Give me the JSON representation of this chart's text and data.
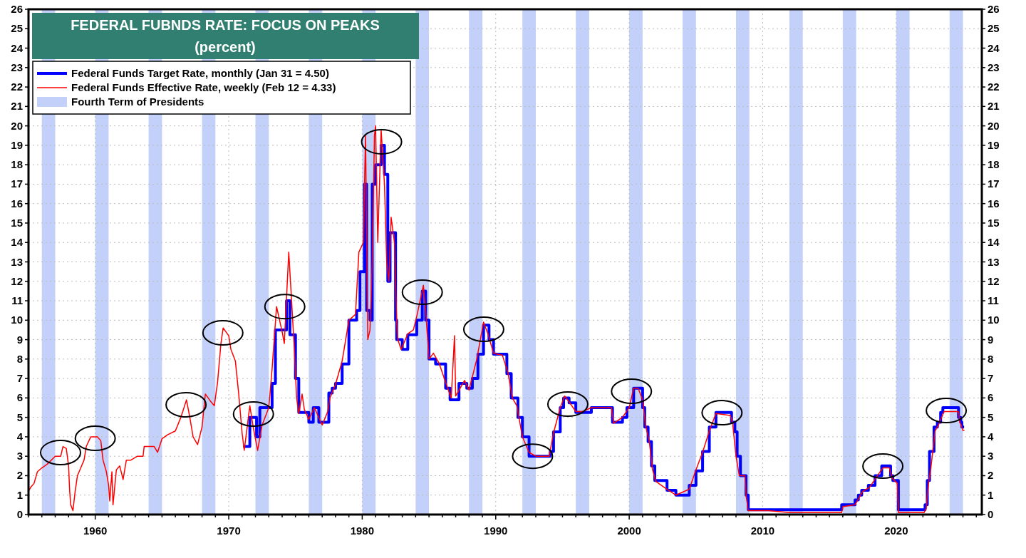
{
  "chart_data": {
    "type": "line",
    "title": "FEDERAL FUBNDS RATE: FOCUS ON PEAKS",
    "subtitle": "(percent)",
    "xlim": [
      "1955-01",
      "2026-06"
    ],
    "xticks": [
      {
        "value": "1955",
        "label": null
      },
      {
        "value": "1956",
        "label": null
      },
      {
        "value": "1957",
        "label": null
      },
      {
        "value": "1958",
        "label": null
      },
      {
        "value": "1959",
        "label": null
      },
      {
        "value": "1960",
        "label": "1960"
      },
      {
        "value": "1961",
        "label": null
      },
      {
        "value": "1962",
        "label": null
      },
      {
        "value": "1963",
        "label": null
      },
      {
        "value": "1964",
        "label": null
      },
      {
        "value": "1965",
        "label": null
      },
      {
        "value": "1966",
        "label": null
      },
      {
        "value": "1967",
        "label": null
      },
      {
        "value": "1968",
        "label": null
      },
      {
        "value": "1969",
        "label": null
      },
      {
        "value": "1970",
        "label": "1970"
      },
      {
        "value": "1971",
        "label": null
      },
      {
        "value": "1972",
        "label": null
      },
      {
        "value": "1973",
        "label": null
      },
      {
        "value": "1974",
        "label": null
      },
      {
        "value": "1975",
        "label": null
      },
      {
        "value": "1976",
        "label": null
      },
      {
        "value": "1977",
        "label": null
      },
      {
        "value": "1978",
        "label": null
      },
      {
        "value": "1979",
        "label": null
      },
      {
        "value": "1980",
        "label": "1980"
      },
      {
        "value": "1981",
        "label": null
      },
      {
        "value": "1982",
        "label": null
      },
      {
        "value": "1983",
        "label": null
      },
      {
        "value": "1984",
        "label": null
      },
      {
        "value": "1985",
        "label": null
      },
      {
        "value": "1986",
        "label": null
      },
      {
        "value": "1987",
        "label": null
      },
      {
        "value": "1988",
        "label": null
      },
      {
        "value": "1989",
        "label": null
      },
      {
        "value": "1990",
        "label": "1990"
      },
      {
        "value": "1991",
        "label": null
      },
      {
        "value": "1992",
        "label": null
      },
      {
        "value": "1993",
        "label": null
      },
      {
        "value": "1994",
        "label": null
      },
      {
        "value": "1995",
        "label": null
      },
      {
        "value": "1996",
        "label": null
      },
      {
        "value": "1997",
        "label": null
      },
      {
        "value": "1998",
        "label": null
      },
      {
        "value": "1999",
        "label": null
      },
      {
        "value": "2000",
        "label": "2000"
      },
      {
        "value": "2001",
        "label": null
      },
      {
        "value": "2002",
        "label": null
      },
      {
        "value": "2003",
        "label": null
      },
      {
        "value": "2004",
        "label": null
      },
      {
        "value": "2005",
        "label": null
      },
      {
        "value": "2006",
        "label": null
      },
      {
        "value": "2007",
        "label": null
      },
      {
        "value": "2008",
        "label": null
      },
      {
        "value": "2009",
        "label": null
      },
      {
        "value": "2010",
        "label": "2010"
      },
      {
        "value": "2011",
        "label": null
      },
      {
        "value": "2012",
        "label": null
      },
      {
        "value": "2013",
        "label": null
      },
      {
        "value": "2014",
        "label": null
      },
      {
        "value": "2015",
        "label": null
      },
      {
        "value": "2016",
        "label": null
      },
      {
        "value": "2017",
        "label": null
      },
      {
        "value": "2018",
        "label": null
      },
      {
        "value": "2019",
        "label": null
      },
      {
        "value": "2020",
        "label": "2020"
      },
      {
        "value": "2021",
        "label": null
      },
      {
        "value": "2022",
        "label": null
      },
      {
        "value": "2023",
        "label": null
      },
      {
        "value": "2024",
        "label": null
      },
      {
        "value": "2025",
        "label": null
      },
      {
        "value": "2026",
        "label": null
      }
    ],
    "ylim": [
      0,
      26
    ],
    "yticks": [
      0,
      1,
      2,
      3,
      4,
      5,
      6,
      7,
      8,
      9,
      10,
      11,
      12,
      13,
      14,
      15,
      16,
      17,
      18,
      19,
      20,
      21,
      22,
      23,
      24,
      25,
      26
    ],
    "y2lim": [
      0,
      26
    ],
    "y2ticks": [
      0,
      1,
      2,
      3,
      4,
      5,
      6,
      7,
      8,
      9,
      10,
      11,
      12,
      13,
      14,
      15,
      16,
      17,
      18,
      19,
      20,
      21,
      22,
      23,
      24,
      25,
      26
    ],
    "grid": true,
    "legend": "top left",
    "bands": [
      {
        "axis": "x",
        "from": "1956",
        "to": "1957",
        "label": "Fourth Term of Presidents",
        "color": "#c3d1fa"
      },
      {
        "axis": "x",
        "from": "1960",
        "to": "1961",
        "color": "#c3d1fa"
      },
      {
        "axis": "x",
        "from": "1964",
        "to": "1965",
        "color": "#c3d1fa"
      },
      {
        "axis": "x",
        "from": "1968",
        "to": "1969",
        "color": "#c3d1fa"
      },
      {
        "axis": "x",
        "from": "1972",
        "to": "1973",
        "color": "#c3d1fa"
      },
      {
        "axis": "x",
        "from": "1976",
        "to": "1977",
        "color": "#c3d1fa"
      },
      {
        "axis": "x",
        "from": "1980",
        "to": "1981",
        "color": "#c3d1fa"
      },
      {
        "axis": "x",
        "from": "1984",
        "to": "1985",
        "color": "#c3d1fa"
      },
      {
        "axis": "x",
        "from": "1988",
        "to": "1989",
        "color": "#c3d1fa"
      },
      {
        "axis": "x",
        "from": "1992",
        "to": "1993",
        "color": "#c3d1fa"
      },
      {
        "axis": "x",
        "from": "1996",
        "to": "1997",
        "color": "#c3d1fa"
      },
      {
        "axis": "x",
        "from": "2000",
        "to": "2001",
        "color": "#c3d1fa"
      },
      {
        "axis": "x",
        "from": "2004",
        "to": "2005",
        "color": "#c3d1fa"
      },
      {
        "axis": "x",
        "from": "2008",
        "to": "2009",
        "color": "#c3d1fa"
      },
      {
        "axis": "x",
        "from": "2012",
        "to": "2013",
        "color": "#c3d1fa"
      },
      {
        "axis": "x",
        "from": "2016",
        "to": "2017",
        "color": "#c3d1fa"
      },
      {
        "axis": "x",
        "from": "2020",
        "to": "2021",
        "color": "#c3d1fa"
      },
      {
        "axis": "x",
        "from": "2024",
        "to": "2025",
        "color": "#c3d1fa"
      }
    ],
    "series": [
      {
        "name": "Federal Funds Target Rate, monthly (Jan 31 = 4.50)",
        "color": "#0000ff",
        "type": "step",
        "x": [
          "1971-02",
          "1971-08",
          "1972-02",
          "1972-05",
          "1973-04",
          "1973-07",
          "1974-05",
          "1974-08",
          "1975-01",
          "1975-04",
          "1976-01",
          "1976-05",
          "1976-10",
          "1977-07",
          "1977-10",
          "1978-01",
          "1978-07",
          "1979-01",
          "1979-08",
          "1979-11",
          "1980-03",
          "1980-05",
          "1980-08",
          "1980-10",
          "1981-01",
          "1981-06",
          "1981-09",
          "1981-12",
          "1982-02",
          "1982-07",
          "1982-08",
          "1983-01",
          "1983-06",
          "1984-02",
          "1984-07",
          "1984-10",
          "1985-01",
          "1985-07",
          "1986-04",
          "1986-08",
          "1987-04",
          "1987-11",
          "1988-04",
          "1988-09",
          "1989-02",
          "1989-07",
          "1989-11",
          "1990-11",
          "1991-03",
          "1991-09",
          "1992-01",
          "1992-07",
          "1994-02",
          "1994-05",
          "1994-11",
          "1995-02",
          "1995-07",
          "1996-01",
          "1997-03",
          "1998-10",
          "1999-07",
          "1999-11",
          "2000-05",
          "2001-01",
          "2001-03",
          "2001-06",
          "2001-09",
          "2001-12",
          "2002-11",
          "2003-07",
          "2004-07",
          "2005-01",
          "2005-07",
          "2006-01",
          "2006-07",
          "2007-09",
          "2007-12",
          "2008-02",
          "2008-05",
          "2008-10",
          "2008-12",
          "2015-12",
          "2016-12",
          "2017-03",
          "2017-06",
          "2017-12",
          "2018-06",
          "2018-12",
          "2019-08",
          "2019-10",
          "2020-03",
          "2022-03",
          "2022-05",
          "2022-07",
          "2022-11",
          "2023-02",
          "2023-05",
          "2023-07",
          "2024-09",
          "2024-11",
          "2024-12",
          "2025-02"
        ],
        "values": [
          3.5,
          5.0,
          4.0,
          5.5,
          6.75,
          9.5,
          11.0,
          9.25,
          7.0,
          5.25,
          4.75,
          5.5,
          4.75,
          6.25,
          6.5,
          6.75,
          7.75,
          10.0,
          10.5,
          12.5,
          17.0,
          10.5,
          10.0,
          17.0,
          18.0,
          19.0,
          17.5,
          12.0,
          14.5,
          10.0,
          9.0,
          8.5,
          9.25,
          10.0,
          11.5,
          10.0,
          8.0,
          7.75,
          6.5,
          5.9,
          6.75,
          6.5,
          7.0,
          8.25,
          9.75,
          9.0,
          8.25,
          7.25,
          6.0,
          5.0,
          4.0,
          3.0,
          3.25,
          4.25,
          5.5,
          6.0,
          5.75,
          5.25,
          5.5,
          4.75,
          5.0,
          5.5,
          6.5,
          5.5,
          4.5,
          3.75,
          2.5,
          1.75,
          1.25,
          1.0,
          1.5,
          2.25,
          3.25,
          4.5,
          5.25,
          4.75,
          4.25,
          3.0,
          2.0,
          1.0,
          0.25,
          0.5,
          0.75,
          1.0,
          1.25,
          1.5,
          2.0,
          2.5,
          2.0,
          1.75,
          0.25,
          0.5,
          1.75,
          3.25,
          4.5,
          4.75,
          5.25,
          5.5,
          5.0,
          4.75,
          4.5,
          4.5
        ]
      },
      {
        "name": "Federal Funds Effective Rate, weekly (Feb 12 = 4.33)",
        "color": "#ff0000",
        "type": "line",
        "x": [
          "1955-01",
          "1955-03",
          "1955-06",
          "1955-09",
          "1956-01",
          "1956-06",
          "1957-01",
          "1957-06",
          "1957-08",
          "1957-11",
          "1958-01",
          "1958-02",
          "1958-03",
          "1958-05",
          "1958-07",
          "1958-09",
          "1958-12",
          "1959-03",
          "1959-05",
          "1959-09",
          "1960-03",
          "1960-06",
          "1960-08",
          "1960-11",
          "1961-01",
          "1961-02",
          "1961-04",
          "1961-05",
          "1961-08",
          "1961-11",
          "1962-02",
          "1962-05",
          "1962-09",
          "1963-03",
          "1963-08",
          "1963-09",
          "1964-06",
          "1964-09",
          "1965-01",
          "1965-06",
          "1966-01",
          "1966-06",
          "1966-11",
          "1967-02",
          "1967-05",
          "1967-09",
          "1968-01",
          "1968-04",
          "1968-09",
          "1968-12",
          "1969-03",
          "1969-06",
          "1969-08",
          "1970-01",
          "1970-03",
          "1970-07",
          "1970-10",
          "1971-01",
          "1971-03",
          "1971-08",
          "1971-11",
          "1972-03",
          "1972-07",
          "1973-01",
          "1973-04",
          "1973-08",
          "1974-01",
          "1974-03",
          "1974-07",
          "1974-09",
          "1974-12",
          "1975-02",
          "1975-04",
          "1975-07",
          "1975-09",
          "1976-01",
          "1976-06",
          "1977-01",
          "1977-06",
          "1977-08",
          "1978-01",
          "1978-07",
          "1979-01",
          "1979-07",
          "1979-10",
          "1980-02",
          "1980-04",
          "1980-06",
          "1980-08",
          "1980-10",
          "1980-12",
          "1981-01",
          "1981-03",
          "1981-06",
          "1981-09",
          "1981-11",
          "1982-01",
          "1982-03",
          "1982-06",
          "1982-08",
          "1982-09",
          "1982-12",
          "1983-06",
          "1983-11",
          "1984-02",
          "1984-08",
          "1984-10",
          "1985-01",
          "1985-05",
          "1985-10",
          "1986-04",
          "1986-09",
          "1986-12",
          "1987-01",
          "1987-09",
          "1988-01",
          "1988-08",
          "1989-02",
          "1989-06",
          "1989-11",
          "1990-07",
          "1990-12",
          "1991-04",
          "1991-08",
          "1992-01",
          "1992-07",
          "1993-01",
          "1994-01",
          "1994-05",
          "1994-11",
          "1995-03",
          "1995-07",
          "1996-01",
          "1996-07",
          "1997-03",
          "1998-09",
          "1998-11",
          "1999-07",
          "2000-01",
          "2000-05",
          "2000-09",
          "2001-01",
          "2001-04",
          "2001-07",
          "2001-10",
          "2002-01",
          "2002-11",
          "2003-07",
          "2004-07",
          "2005-01",
          "2005-07",
          "2006-01",
          "2006-07",
          "2007-08",
          "2007-10",
          "2008-01",
          "2008-04",
          "2008-09",
          "2008-10",
          "2008-12",
          "2010-06",
          "2012-01",
          "2014-01",
          "2015-12",
          "2016-01",
          "2016-12",
          "2017-04",
          "2017-07",
          "2018-01",
          "2018-07",
          "2019-01",
          "2019-07",
          "2019-09",
          "2020-02",
          "2020-03",
          "2022-02",
          "2022-04",
          "2022-06",
          "2022-08",
          "2022-12",
          "2023-03",
          "2023-08",
          "2024-09",
          "2024-10",
          "2025-01",
          "2025-02"
        ],
        "values": [
          1.2,
          1.4,
          1.6,
          2.2,
          2.4,
          2.6,
          3.0,
          3.0,
          3.5,
          3.4,
          2.5,
          1.2,
          0.5,
          0.2,
          1.2,
          2.0,
          2.4,
          2.8,
          3.5,
          4.0,
          4.0,
          3.8,
          2.8,
          2.2,
          1.5,
          0.7,
          2.2,
          0.5,
          2.3,
          2.5,
          1.8,
          2.8,
          2.8,
          3.0,
          3.0,
          3.5,
          3.5,
          3.2,
          3.9,
          4.1,
          4.3,
          5.0,
          5.9,
          5.0,
          4.0,
          3.6,
          4.5,
          6.2,
          5.8,
          5.6,
          6.8,
          8.8,
          9.6,
          9.2,
          8.5,
          7.9,
          6.2,
          4.2,
          3.3,
          5.6,
          4.5,
          3.3,
          4.6,
          5.5,
          7.5,
          10.7,
          9.4,
          8.8,
          13.5,
          11.5,
          8.5,
          6.0,
          5.2,
          6.2,
          5.4,
          4.9,
          5.5,
          4.6,
          5.3,
          6.0,
          6.7,
          7.9,
          10.0,
          10.3,
          13.5,
          14.0,
          19.5,
          9.0,
          9.5,
          13.0,
          19.5,
          20.0,
          14.0,
          19.8,
          17.0,
          13.0,
          12.0,
          15.3,
          14.0,
          10.0,
          9.0,
          8.5,
          9.3,
          9.5,
          10.2,
          11.8,
          10.5,
          8.0,
          8.3,
          7.8,
          6.8,
          6.0,
          9.2,
          6.1,
          6.9,
          6.4,
          8.0,
          9.9,
          9.3,
          8.3,
          8.2,
          7.3,
          6.0,
          5.6,
          4.0,
          3.2,
          3.0,
          3.0,
          4.2,
          5.5,
          6.1,
          5.8,
          5.3,
          5.3,
          5.5,
          5.5,
          4.7,
          5.0,
          5.5,
          6.5,
          6.5,
          5.9,
          4.5,
          3.8,
          2.3,
          1.7,
          1.3,
          1.0,
          1.3,
          2.3,
          3.2,
          4.3,
          5.2,
          5.1,
          4.7,
          3.0,
          2.0,
          2.0,
          1.0,
          0.2,
          0.2,
          0.1,
          0.1,
          0.1,
          0.4,
          0.5,
          0.9,
          1.2,
          1.4,
          1.9,
          2.4,
          2.4,
          1.9,
          1.6,
          0.1,
          0.1,
          0.3,
          1.6,
          2.3,
          4.3,
          4.6,
          5.3,
          5.3,
          4.8,
          4.33,
          4.33
        ]
      }
    ]
  }
}
